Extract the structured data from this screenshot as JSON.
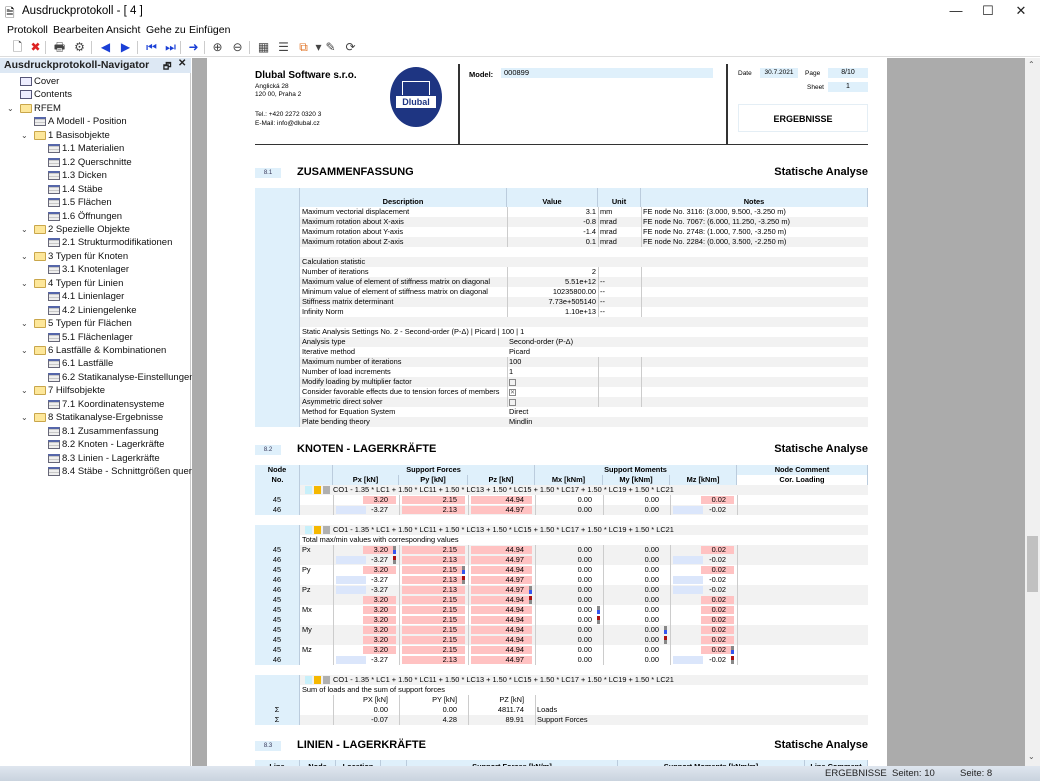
{
  "window": {
    "title": "Ausdruckprotokoll - [ 4 ]",
    "minimize": "—",
    "maximize": "☐",
    "close": "✕"
  },
  "menu": [
    "Protokoll",
    "Bearbeiten",
    "Ansicht",
    "Gehe zu",
    "Einfügen"
  ],
  "toolbar": [
    "new-page-icon",
    "delete-page-icon",
    "print-icon",
    "print-settings-icon",
    "previous-icon",
    "next-icon",
    "first-page-icon",
    "last-page-icon",
    "go-to-page-icon",
    "zoom-in-icon",
    "zoom-out-icon",
    "page-layout-icon",
    "header-icon",
    "export-icon",
    "dropdown-icon",
    "edit-icon",
    "refresh-icon"
  ],
  "navigator": {
    "title": "Ausdruckprotokoll-Navigator",
    "items": [
      {
        "label": "Cover",
        "level": 0,
        "type": "doc"
      },
      {
        "label": "Contents",
        "level": 0,
        "type": "doc"
      },
      {
        "label": "RFEM",
        "level": 0,
        "type": "folder",
        "expanded": true
      },
      {
        "label": "A Modell - Position",
        "level": 1,
        "type": "table"
      },
      {
        "label": "1 Basisobjekte",
        "level": 1,
        "type": "folder",
        "expanded": true
      },
      {
        "label": "1.1 Materialien",
        "level": 2,
        "type": "table"
      },
      {
        "label": "1.2 Querschnitte",
        "level": 2,
        "type": "table"
      },
      {
        "label": "1.3 Dicken",
        "level": 2,
        "type": "table"
      },
      {
        "label": "1.4 Stäbe",
        "level": 2,
        "type": "table"
      },
      {
        "label": "1.5 Flächen",
        "level": 2,
        "type": "table"
      },
      {
        "label": "1.6 Öffnungen",
        "level": 2,
        "type": "table"
      },
      {
        "label": "2 Spezielle Objekte",
        "level": 1,
        "type": "folder",
        "expanded": true
      },
      {
        "label": "2.1 Strukturmodifikationen",
        "level": 2,
        "type": "table"
      },
      {
        "label": "3 Typen für Knoten",
        "level": 1,
        "type": "folder",
        "expanded": true
      },
      {
        "label": "3.1 Knotenlager",
        "level": 2,
        "type": "table"
      },
      {
        "label": "4 Typen für Linien",
        "level": 1,
        "type": "folder",
        "expanded": true
      },
      {
        "label": "4.1 Linienlager",
        "level": 2,
        "type": "table"
      },
      {
        "label": "4.2 Liniengelenke",
        "level": 2,
        "type": "table"
      },
      {
        "label": "5 Typen für Flächen",
        "level": 1,
        "type": "folder",
        "expanded": true
      },
      {
        "label": "5.1 Flächenlager",
        "level": 2,
        "type": "table"
      },
      {
        "label": "6 Lastfälle & Kombinationen",
        "level": 1,
        "type": "folder",
        "expanded": true
      },
      {
        "label": "6.1 Lastfälle",
        "level": 2,
        "type": "table"
      },
      {
        "label": "6.2 Statikanalyse-Einstellungen",
        "level": 2,
        "type": "table"
      },
      {
        "label": "7 Hilfsobjekte",
        "level": 1,
        "type": "folder",
        "expanded": true
      },
      {
        "label": "7.1 Koordinatensysteme",
        "level": 2,
        "type": "table"
      },
      {
        "label": "8 Statikanalyse-Ergebnisse",
        "level": 1,
        "type": "folder",
        "expanded": true
      },
      {
        "label": "8.1 Zusammenfassung",
        "level": 2,
        "type": "table"
      },
      {
        "label": "8.2 Knoten - Lagerkräfte",
        "level": 2,
        "type": "table"
      },
      {
        "label": "8.3 Linien - Lagerkräfte",
        "level": 2,
        "type": "table"
      },
      {
        "label": "8.4 Stäbe - Schnittgrößen quersc...",
        "level": 2,
        "type": "table"
      }
    ]
  },
  "header": {
    "company": "Dlubal Software s.r.o.",
    "street": "Anglická 28",
    "city": "120 00, Praha 2",
    "tel": "Tel.: +420 2272 0320 3",
    "email": "E-Mail: info@dlubal.cz",
    "logo_text": "Dlubal",
    "model_label": "Model:",
    "model": "000899",
    "date_label": "Date",
    "date": "30.7.2021",
    "page_label": "Page",
    "page": "8/10",
    "sheet_label": "Sheet",
    "sheet": "1",
    "chapter": "ERGEBNISSE"
  },
  "sections": [
    {
      "no": "8.1",
      "title": "ZUSAMMENFASSUNG",
      "right": "Statische Analyse"
    },
    {
      "no": "8.2",
      "title": "KNOTEN - LAGERKRÄFTE",
      "right": "Statische Analyse"
    },
    {
      "no": "8.3",
      "title": "LINIEN - LAGERKRÄFTE",
      "right": "Statische Analyse"
    }
  ],
  "summary": {
    "columns": [
      "Description",
      "Value",
      "Unit",
      "Notes"
    ],
    "rows": [
      [
        "Maximum vectorial displacement",
        "3.1",
        "mm",
        "FE node No. 3116: (3.000, 9.500, -3.250 m)"
      ],
      [
        "Maximum rotation about X-axis",
        "-0.8",
        "mrad",
        "FE node No. 7067: (6.000, 11.250, -3.250 m)"
      ],
      [
        "Maximum rotation about Y-axis",
        "-1.4",
        "mrad",
        "FE node No. 2748: (1.000, 7.500, -3.250 m)"
      ],
      [
        "Maximum rotation about Z-axis",
        "0.1",
        "mrad",
        "FE node No. 2284: (0.000, 3.500, -2.250 m)"
      ],
      null,
      [
        "Calculation statistic"
      ],
      [
        "Number of iterations",
        "2",
        "",
        ""
      ],
      [
        "Maximum value of element of stiffness matrix on diagonal",
        "5.51e+12",
        "--",
        ""
      ],
      [
        "Minimum value of element of stiffness matrix on diagonal",
        "10235800.00",
        "--",
        ""
      ],
      [
        "Stiffness matrix determinant",
        "7.73e+505140",
        "--",
        ""
      ],
      [
        "Infinity Norm",
        "1.10e+13",
        "--",
        ""
      ],
      null,
      [
        "Static Analysis Settings No. 2 - Second-order (P-Δ) | Picard | 100 | 1"
      ],
      [
        "Analysis type",
        "Second-order (P-Δ)"
      ],
      [
        "Iterative method",
        "Picard"
      ],
      [
        "Maximum number of iterations",
        "100",
        "",
        ""
      ],
      [
        "Number of load increments",
        "1",
        "",
        ""
      ],
      [
        "Modify loading by multiplier factor",
        "[ ]",
        "",
        ""
      ],
      [
        "Consider favorable effects due to tension forces of members",
        "[x]",
        "",
        ""
      ],
      [
        "Asymmetric direct solver",
        "[ ]",
        "",
        ""
      ],
      [
        "Method for Equation System",
        "Direct"
      ],
      [
        "Plate bending theory",
        "Mindlin"
      ]
    ]
  },
  "knoten": {
    "head1": [
      "Node",
      "Support Forces",
      "Support Moments",
      "Node Comment"
    ],
    "head2": [
      "No.",
      "Px [kN]",
      "Py [kN]",
      "Pz [kN]",
      "Mx [kNm]",
      "My [kNm]",
      "Mz [kNm]",
      "Cor. Loading"
    ],
    "combo": "CO1 - 1.35 * LC1 + 1.50 * LC11 + 1.50 * LC13 + 1.50 * LC15 + 1.50 * LC17 + 1.50 * LC19 + 1.50 * LC21",
    "combo_colors": [
      "#c8f0fa",
      "#f5b800",
      "#b0b0b0"
    ],
    "rows": [
      [
        "45",
        "",
        "3.20",
        "2.15",
        "44.94",
        "0.00",
        "0.00",
        "0.02"
      ],
      [
        "46",
        "",
        "-3.27",
        "2.13",
        "44.97",
        "0.00",
        "0.00",
        "-0.02"
      ]
    ],
    "extremes_title": "Total max/min values with corresponding values",
    "extremes": [
      [
        "45",
        "Px",
        "3.20",
        "2.15",
        "44.94",
        "0.00",
        "0.00",
        "0.02"
      ],
      [
        "46",
        "",
        "-3.27",
        "2.13",
        "44.97",
        "0.00",
        "0.00",
        "-0.02"
      ],
      [
        "45",
        "Py",
        "3.20",
        "2.15",
        "44.94",
        "0.00",
        "0.00",
        "0.02"
      ],
      [
        "46",
        "",
        "-3.27",
        "2.13",
        "44.97",
        "0.00",
        "0.00",
        "-0.02"
      ],
      [
        "46",
        "Pz",
        "-3.27",
        "2.13",
        "44.97",
        "0.00",
        "0.00",
        "-0.02"
      ],
      [
        "45",
        "",
        "3.20",
        "2.15",
        "44.94",
        "0.00",
        "0.00",
        "0.02"
      ],
      [
        "45",
        "Mx",
        "3.20",
        "2.15",
        "44.94",
        "0.00",
        "0.00",
        "0.02"
      ],
      [
        "45",
        "",
        "3.20",
        "2.15",
        "44.94",
        "0.00",
        "0.00",
        "0.02"
      ],
      [
        "45",
        "My",
        "3.20",
        "2.15",
        "44.94",
        "0.00",
        "0.00",
        "0.02"
      ],
      [
        "45",
        "",
        "3.20",
        "2.15",
        "44.94",
        "0.00",
        "0.00",
        "0.02"
      ],
      [
        "45",
        "Mz",
        "3.20",
        "2.15",
        "44.94",
        "0.00",
        "0.00",
        "0.02"
      ],
      [
        "46",
        "",
        "-3.27",
        "2.13",
        "44.97",
        "0.00",
        "0.00",
        "-0.02"
      ]
    ],
    "sum_title": "Sum of loads and the sum of support forces",
    "sum_head": [
      "PX [kN]",
      "PY [kN]",
      "PZ [kN]"
    ],
    "sum_rows": [
      [
        "Σ",
        "0.00",
        "0.00",
        "4811.74",
        "Loads"
      ],
      [
        "Σ",
        "-0.07",
        "4.28",
        "89.91",
        "Support Forces"
      ]
    ],
    "pos_color": "#ffc2c2",
    "neg_color": "#dbe6fb"
  },
  "linien": {
    "head": [
      "Line",
      "Node",
      "Location",
      "",
      "Support Forces [kN/m]",
      "Support Moments [kNm/m]",
      "Line Comment"
    ]
  },
  "status": {
    "chapter": "ERGEBNISSE",
    "pages": "Seiten: 10",
    "page": "Seite: 8"
  }
}
